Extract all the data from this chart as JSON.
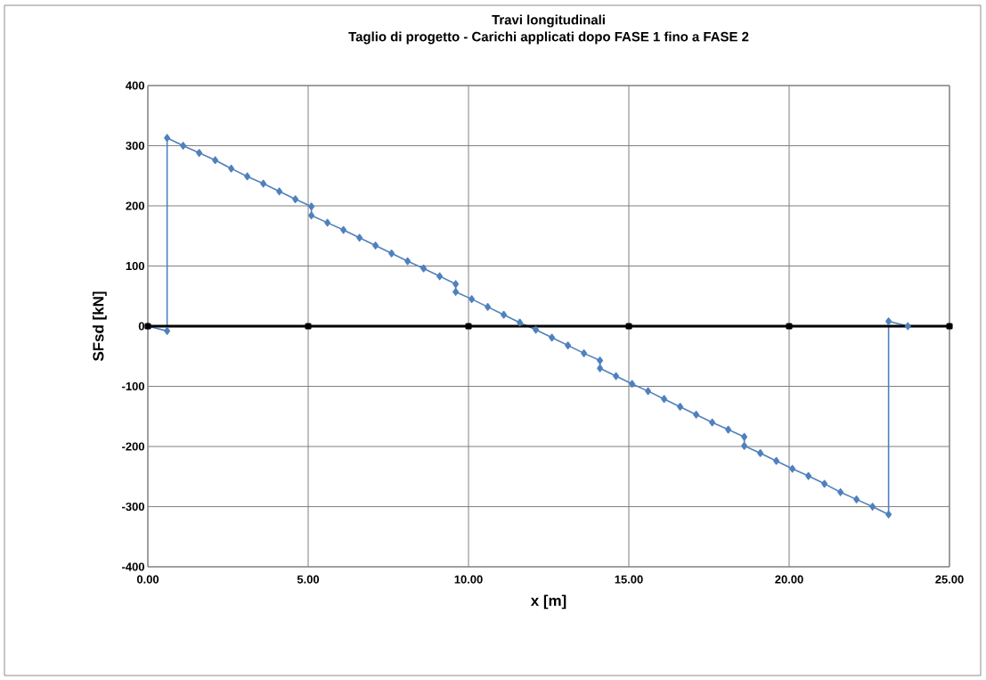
{
  "chart_data": {
    "type": "line",
    "title": "Travi longitudinali",
    "subtitle": "Taglio di progetto - Carichi applicati dopo FASE 1 fino a FASE 2",
    "xlabel": "x [m]",
    "ylabel": "SFsd  [kN]",
    "series": [
      {
        "color": "#4f81bd",
        "marker": "diamond",
        "x": [
          0,
          0.6,
          0.6,
          1.1,
          1.6,
          2.1,
          2.6,
          3.1,
          3.6,
          4.1,
          4.6,
          5.1,
          5.1,
          5.6,
          6.1,
          6.6,
          7.1,
          7.6,
          8.1,
          8.6,
          9.1,
          9.6,
          9.6,
          10.1,
          10.6,
          11.1,
          11.6,
          12.1,
          12.6,
          13.1,
          13.6,
          14.1,
          14.1,
          14.6,
          15.1,
          15.6,
          16.1,
          16.6,
          17.1,
          17.6,
          18.1,
          18.6,
          18.6,
          19.1,
          19.6,
          20.1,
          20.6,
          21.1,
          21.6,
          22.1,
          22.6,
          23.1,
          23.1,
          23.7
        ],
        "values": [
          0,
          -8,
          313,
          300,
          288,
          276,
          262,
          249,
          237,
          224,
          211,
          199,
          184,
          172,
          160,
          147,
          134,
          121,
          108,
          96,
          83,
          70,
          57,
          45,
          32,
          19,
          6,
          -6,
          -19,
          -32,
          -45,
          -57,
          -70,
          -83,
          -96,
          -108,
          -121,
          -134,
          -147,
          -160,
          -172,
          -184,
          -199,
          -211,
          -224,
          -237,
          -249,
          -262,
          -276,
          -288,
          -300,
          -313,
          8,
          0
        ]
      },
      {
        "color": "#000000",
        "marker": "square",
        "x": [
          0,
          5,
          10,
          15,
          20,
          25
        ],
        "values": [
          0,
          0,
          0,
          0,
          0,
          0
        ]
      }
    ],
    "xlim": [
      0,
      25
    ],
    "ylim": [
      -400,
      400
    ],
    "xticks": [
      {
        "value": 0,
        "label": "0.00"
      },
      {
        "value": 5,
        "label": "5.00"
      },
      {
        "value": 10,
        "label": "10.00"
      },
      {
        "value": 15,
        "label": "15.00"
      },
      {
        "value": 20,
        "label": "20.00"
      },
      {
        "value": 25,
        "label": "25.00"
      }
    ],
    "yticks": [
      -400,
      -300,
      -200,
      -100,
      0,
      100,
      200,
      300,
      400
    ],
    "grid": true,
    "line_style": "solid"
  }
}
